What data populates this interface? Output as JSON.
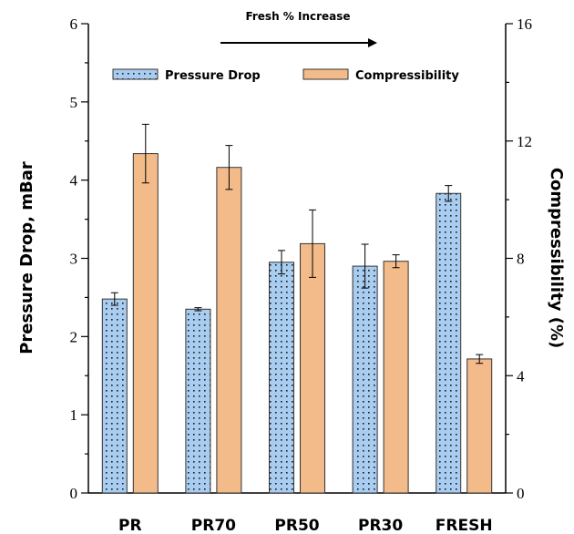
{
  "chart_data": {
    "type": "bar",
    "categories": [
      "PR",
      "PR70",
      "PR50",
      "PR30",
      "FRESH"
    ],
    "series": [
      {
        "name": "Pressure Drop",
        "axis": "left",
        "values": [
          2.48,
          2.35,
          2.95,
          2.9,
          3.83
        ],
        "errors": [
          0.08,
          0.02,
          0.15,
          0.28,
          0.1
        ],
        "color": "#a9cdf0",
        "pattern": "dots"
      },
      {
        "name": "Compressibility",
        "axis": "right",
        "values": [
          11.57,
          11.1,
          8.5,
          7.9,
          4.57
        ],
        "errors": [
          1.0,
          0.75,
          1.15,
          0.22,
          0.15
        ],
        "color": "#f4bb8a",
        "pattern": "solid"
      }
    ],
    "ylabel": "Pressure Drop, mBar",
    "ylim": [
      0,
      6
    ],
    "yticks": [
      "0",
      "1",
      "2",
      "3",
      "4",
      "5",
      "6"
    ],
    "y2label": "Compressibility (%)",
    "y2lim": [
      0,
      16
    ],
    "y2ticks": [
      "0",
      "4",
      "8",
      "12",
      "16"
    ],
    "annotation": "Fresh % Increase",
    "legend_position": "top",
    "grid": false
  }
}
